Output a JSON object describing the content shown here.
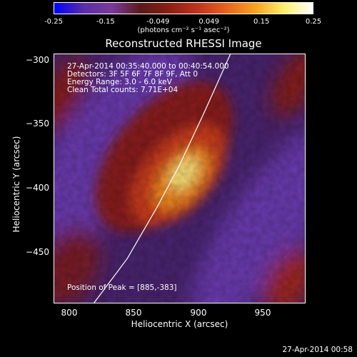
{
  "colorbar": {
    "ticks": [
      "-0.25",
      "-0.15",
      "-0.049",
      "0.049",
      "0.15",
      "0.25"
    ],
    "tick_values": [
      -0.25,
      -0.15,
      -0.049,
      0.049,
      0.15,
      0.25
    ],
    "range": [
      -0.25,
      0.25
    ],
    "units_text": "(photons cm⁻² s⁻¹ asec⁻²)",
    "colormap": [
      "#0000ff",
      "#5a2da8",
      "#7a3a9a",
      "#5a1a1a",
      "#8a1e12",
      "#c0331d",
      "#e8631e",
      "#f7a21e",
      "#fff06a",
      "#ffffff"
    ]
  },
  "chart_data": {
    "type": "heatmap",
    "title": "Reconstructed RHESSI Image",
    "xlabel": "Heliocentric X (arcsec)",
    "ylabel": "Heliocentric Y (arcsec)",
    "xlim": [
      788,
      983
    ],
    "ylim": [
      -490,
      -295
    ],
    "xticks": [
      {
        "value": 800,
        "label": "800"
      },
      {
        "value": 850,
        "label": "850"
      },
      {
        "value": 900,
        "label": "900"
      },
      {
        "value": 950,
        "label": "950"
      }
    ],
    "yticks": [
      {
        "value": -300,
        "label": "−300"
      },
      {
        "value": -350,
        "label": "−350"
      },
      {
        "value": -400,
        "label": "−400"
      },
      {
        "value": -450,
        "label": "−450"
      }
    ],
    "peak": [
      885,
      -383
    ],
    "limb_curve": [
      [
        819,
        -490
      ],
      [
        845,
        -455
      ],
      [
        868,
        -415
      ],
      [
        885,
        -383
      ],
      [
        905,
        -340
      ],
      [
        925,
        -295
      ]
    ],
    "annotations": [
      "27-Apr-2014 00:35:40.000 to 00:40:54.000",
      "Detectors: 3F 5F 6F 7F 8F 9F, Att 0",
      "Energy Range: 3.0 - 6.0 keV",
      "Clean    Total counts: 7.71E+04"
    ],
    "peak_label": "Position of Peak = [885,-383]"
  },
  "footer": {
    "timestamp": "27-Apr-2014 00:58"
  }
}
